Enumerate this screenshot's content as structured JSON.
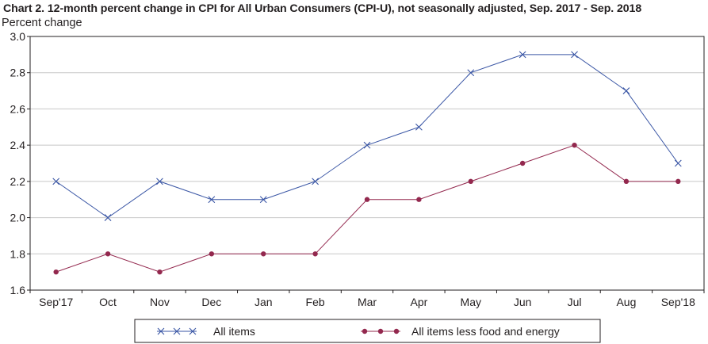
{
  "chart_data": {
    "type": "line",
    "title": "Chart 2. 12-month percent change in CPI for All Urban Consumers (CPI-U), not seasonally adjusted, Sep. 2017 - Sep. 2018",
    "ylabel": "Percent change",
    "xlabel": "",
    "categories": [
      "Sep'17",
      "Oct",
      "Nov",
      "Dec",
      "Jan",
      "Feb",
      "Mar",
      "Apr",
      "May",
      "Jun",
      "Jul",
      "Aug",
      "Sep'18"
    ],
    "ylim": [
      1.6,
      3.0
    ],
    "yticks": [
      "1.6",
      "1.8",
      "2.0",
      "2.2",
      "2.4",
      "2.6",
      "2.8",
      "3.0"
    ],
    "grid": true,
    "legend_position": "bottom",
    "series": [
      {
        "name": "All items",
        "marker": "x",
        "color": "#3a56a5",
        "values": [
          2.2,
          2.0,
          2.2,
          2.1,
          2.1,
          2.2,
          2.4,
          2.5,
          2.8,
          2.9,
          2.9,
          2.7,
          2.3
        ]
      },
      {
        "name": "All items less food and energy",
        "marker": "circle",
        "color": "#93284e",
        "values": [
          1.7,
          1.8,
          1.7,
          1.8,
          1.8,
          1.8,
          2.1,
          2.1,
          2.2,
          2.3,
          2.4,
          2.2,
          2.2
        ]
      }
    ]
  }
}
